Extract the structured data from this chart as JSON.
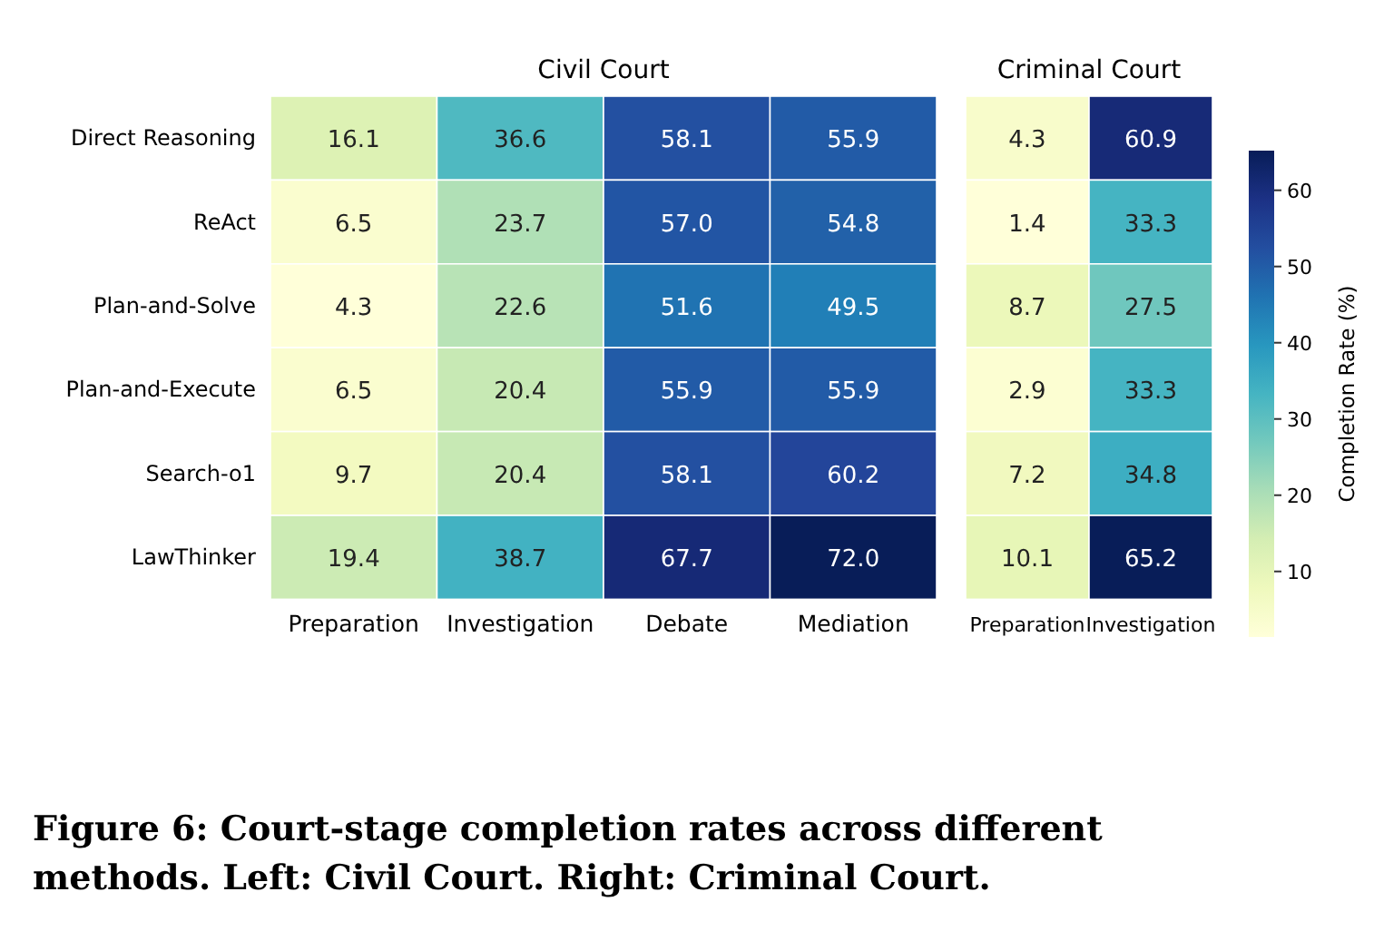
{
  "chart_data": [
    {
      "type": "heatmap",
      "title": "Civil Court",
      "categories": [
        "Preparation",
        "Investigation",
        "Debate",
        "Mediation"
      ],
      "y_categories": [
        "Direct Reasoning",
        "ReAct",
        "Plan-and-Solve",
        "Plan-and-Execute",
        "Search-o1",
        "LawThinker"
      ],
      "cells": [
        [
          16.1,
          36.6,
          58.1,
          55.9
        ],
        [
          6.5,
          23.7,
          57.0,
          54.8
        ],
        [
          4.3,
          22.6,
          51.6,
          49.5
        ],
        [
          6.5,
          20.4,
          55.9,
          55.9
        ],
        [
          9.7,
          20.4,
          58.1,
          60.2
        ],
        [
          19.4,
          38.7,
          67.7,
          72.0
        ]
      ],
      "data_labels": true,
      "cell_labels": [
        [
          "16.1",
          "36.6",
          "58.1",
          "55.9"
        ],
        [
          "6.5",
          "23.7",
          "57.0",
          "54.8"
        ],
        [
          "4.3",
          "22.6",
          "51.6",
          "49.5"
        ],
        [
          "6.5",
          "20.4",
          "55.9",
          "55.9"
        ],
        [
          "9.7",
          "20.4",
          "58.1",
          "60.2"
        ],
        [
          "19.4",
          "38.7",
          "67.7",
          "72.0"
        ]
      ],
      "annotations": [
        "Figure 6: Court-stage completion rates across different methods. Left: Civil Court. Right: Criminal Court."
      ]
    },
    {
      "type": "heatmap",
      "title": "Criminal Court",
      "categories": [
        "Preparation",
        "Investigation"
      ],
      "y_categories": [
        "Direct Reasoning",
        "ReAct",
        "Plan-and-Solve",
        "Plan-and-Execute",
        "Search-o1",
        "LawThinker"
      ],
      "cells": [
        [
          4.3,
          60.9
        ],
        [
          1.4,
          33.3
        ],
        [
          8.7,
          27.5
        ],
        [
          2.9,
          33.3
        ],
        [
          7.2,
          34.8
        ],
        [
          10.1,
          65.2
        ]
      ],
      "data_labels": true,
      "tick_labels": "x",
      "clabel": "Completion Rate (%)",
      "clim": [
        1.4,
        65.2
      ],
      "cticks": [
        10,
        20,
        30,
        40,
        50,
        60
      ]
    }
  ]
}
